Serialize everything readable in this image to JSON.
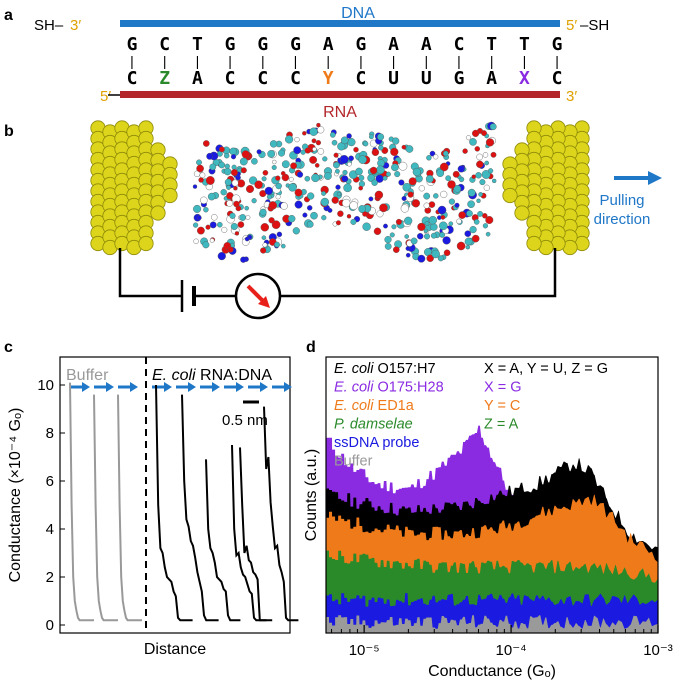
{
  "panels": {
    "a": {
      "label": "a",
      "dna_label": "DNA",
      "rna_label": "RNA",
      "sh_left": "SH–",
      "sh_right": "–SH",
      "dna_left_end": "3′",
      "dna_right_end": "5′",
      "rna_left_end": "5′",
      "rna_right_end": "3′",
      "dna_seq": [
        "G",
        "C",
        "T",
        "G",
        "G",
        "G",
        "A",
        "G",
        "A",
        "A",
        "C",
        "T",
        "T",
        "G"
      ],
      "rna_seq": [
        "C",
        "Z",
        "A",
        "C",
        "C",
        "C",
        "Y",
        "C",
        "U",
        "U",
        "G",
        "A",
        "X",
        "C"
      ],
      "bond": "|",
      "colors": {
        "dna": "#1f77c8",
        "rna": "#b3262a",
        "end": "#e0a100",
        "Z": "#2a8a2a",
        "Y": "#ef7a1a",
        "X": "#8a2be2"
      }
    },
    "b": {
      "label": "b",
      "pulling_label_1": "Pulling",
      "pulling_label_2": "direction",
      "arrow_color": "#1f77c8",
      "electrode_color": "#d8d21c"
    },
    "c": {
      "label": "c",
      "buffer_label": "Buffer",
      "sample_label_italic": "E. coli",
      "sample_label_rest": " RNA:DNA",
      "scale_label": "0.5 nm",
      "ylabel": "Conductance (×10⁻⁴ Gₒ)",
      "xlabel": "Distance",
      "yticks": [
        "0",
        "2",
        "4",
        "6",
        "8",
        "10"
      ]
    },
    "d": {
      "label": "d",
      "ylabel": "Counts (a.u.)",
      "xlabel": "Conductance (Gₒ)",
      "xticks": [
        "10⁻⁵",
        "10⁻⁴",
        "10⁻³"
      ],
      "legend": [
        {
          "italic": "E. coli",
          "rest": " O157:H7",
          "color": "#000000"
        },
        {
          "italic": "E. coli",
          "rest": " O175:H28",
          "color": "#8a2be2"
        },
        {
          "italic": "E. coli",
          "rest": " ED1a",
          "color": "#ef7a1a"
        },
        {
          "italic": "P. damselae",
          "rest": "",
          "color": "#2a8a2a"
        },
        {
          "italic": "",
          "rest": "ssDNA probe",
          "color": "#1a1ae0"
        },
        {
          "italic": "",
          "rest": "Buffer",
          "color": "#9a9a9a"
        }
      ],
      "mapping": [
        {
          "text": "X = A, Y = U, Z = G",
          "color": "#000000"
        },
        {
          "text": "X = G",
          "color": "#8a2be2"
        },
        {
          "text": "Y = C",
          "color": "#ef7a1a"
        },
        {
          "text": "Z = A",
          "color": "#2a8a2a"
        }
      ]
    }
  },
  "chart_data": [
    {
      "type": "line",
      "panel": "c",
      "ylabel": "Conductance (×10⁻⁴ Gₒ)",
      "xlabel": "Distance",
      "ylim": [
        0,
        11
      ],
      "yticks": [
        0,
        2,
        4,
        6,
        8,
        10
      ],
      "series": [
        {
          "name": "Buffer",
          "color": "#999999",
          "traces": [
            [
              10.1,
              5,
              2,
              1,
              0.6,
              0.3,
              0.2,
              0.2,
              0.2,
              0.2
            ],
            [
              9.6,
              5,
              2,
              1,
              0.6,
              0.3,
              0.2,
              0.2,
              0.2,
              0.2
            ],
            [
              9.6,
              5,
              2,
              1,
              0.6,
              0.3,
              0.2,
              0.2,
              0.2,
              0.2
            ]
          ]
        },
        {
          "name": "E. coli RNA:DNA",
          "color": "#000000",
          "traces": [
            [
              10.0,
              5,
              3.2,
              3,
              2.4,
              2,
              1.9,
              1.8,
              1.4,
              1.2,
              0.3,
              0.2,
              0.2
            ],
            [
              9.6,
              6,
              4.4,
              4.1,
              3.5,
              3.3,
              2.8,
              2.2,
              1.8,
              1.4,
              0.4,
              0.2,
              0.2
            ],
            [
              6.9,
              4,
              3.2,
              3.0,
              2.6,
              2.0,
              1.9,
              1.8,
              1.5,
              1.4,
              0.4,
              0.2
            ],
            [
              7.5,
              4,
              2.9,
              3.0,
              2.4,
              2.1,
              2.0,
              1.7,
              1.4,
              1.3,
              0.3,
              0.2
            ],
            [
              7.4,
              5,
              3.0,
              3.3,
              2.7,
              2.6,
              2.2,
              2.1,
              1.9,
              0.2,
              0.2
            ],
            [
              9.1,
              6.5,
              7.0,
              5.1,
              4.1,
              3.2,
              3.3,
              2.5,
              2.2,
              1.8,
              0.3,
              0.2
            ]
          ]
        }
      ]
    },
    {
      "type": "area",
      "panel": "d",
      "xlabel": "Conductance (Gₒ)",
      "ylabel": "Counts (a.u.)",
      "xscale": "log",
      "xlim": [
        5.5e-06,
        0.001
      ],
      "x": [
        5.5e-06,
        8e-06,
        1.2e-05,
        2e-05,
        3e-05,
        4.5e-05,
        6e-05,
        8e-05,
        0.00011,
        0.00015,
        0.0002,
        0.00027,
        0.00035,
        0.00045,
        0.00065,
        0.001
      ],
      "series": [
        {
          "name": "E. coli O175:H28",
          "color": "#8a2be2",
          "values": [
            0.7,
            0.6,
            0.54,
            0.52,
            0.58,
            0.66,
            0.74,
            0.6,
            0.45,
            0.42,
            0.41,
            0.4,
            0.38,
            0.36,
            0.3,
            0.26
          ]
        },
        {
          "name": "E. coli O157:H7",
          "color": "#000000",
          "values": [
            0.5,
            0.48,
            0.46,
            0.44,
            0.45,
            0.46,
            0.48,
            0.5,
            0.52,
            0.54,
            0.58,
            0.62,
            0.58,
            0.48,
            0.36,
            0.3
          ]
        },
        {
          "name": "E. coli ED1a",
          "color": "#ef7a1a",
          "values": [
            0.42,
            0.4,
            0.38,
            0.36,
            0.36,
            0.36,
            0.37,
            0.38,
            0.4,
            0.43,
            0.45,
            0.47,
            0.49,
            0.44,
            0.34,
            0.28
          ]
        },
        {
          "name": "P. damselae",
          "color": "#2a8a2a",
          "values": [
            0.28,
            0.27,
            0.26,
            0.25,
            0.24,
            0.24,
            0.24,
            0.24,
            0.24,
            0.24,
            0.24,
            0.24,
            0.24,
            0.23,
            0.22,
            0.2
          ]
        },
        {
          "name": "ssDNA probe",
          "color": "#1a1ae0",
          "values": [
            0.12,
            0.12,
            0.12,
            0.12,
            0.12,
            0.12,
            0.12,
            0.12,
            0.12,
            0.12,
            0.12,
            0.12,
            0.12,
            0.12,
            0.12,
            0.12
          ]
        },
        {
          "name": "Buffer",
          "color": "#9a9a9a",
          "values": [
            0.04,
            0.04,
            0.04,
            0.04,
            0.04,
            0.04,
            0.04,
            0.04,
            0.04,
            0.04,
            0.04,
            0.04,
            0.04,
            0.04,
            0.04,
            0.04
          ]
        }
      ]
    }
  ]
}
